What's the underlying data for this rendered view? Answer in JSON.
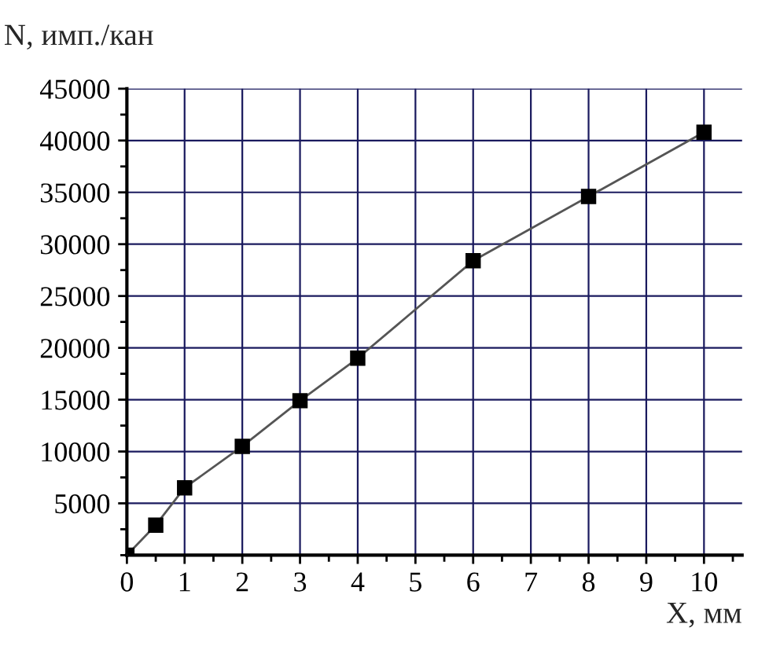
{
  "chart_data": {
    "type": "line",
    "xlabel": "X, мм",
    "ylabel": "N, имп./кан",
    "x": [
      0,
      0.5,
      1,
      2,
      3,
      4,
      6,
      8,
      10
    ],
    "series": [
      {
        "color": "#000000",
        "values": [
          0,
          2900,
          6500,
          10500,
          14900,
          19000,
          28400,
          34600,
          40800
        ]
      }
    ],
    "marker": "square",
    "line_style": "solid",
    "xlim": [
      0,
      10.66
    ],
    "xticks": [
      0,
      1,
      2,
      3,
      4,
      5,
      6,
      7,
      8,
      9,
      10
    ],
    "ylim": [
      0,
      45000
    ],
    "yticks": [
      5000,
      10000,
      15000,
      20000,
      25000,
      30000,
      35000,
      40000,
      45000
    ],
    "grid": true
  }
}
